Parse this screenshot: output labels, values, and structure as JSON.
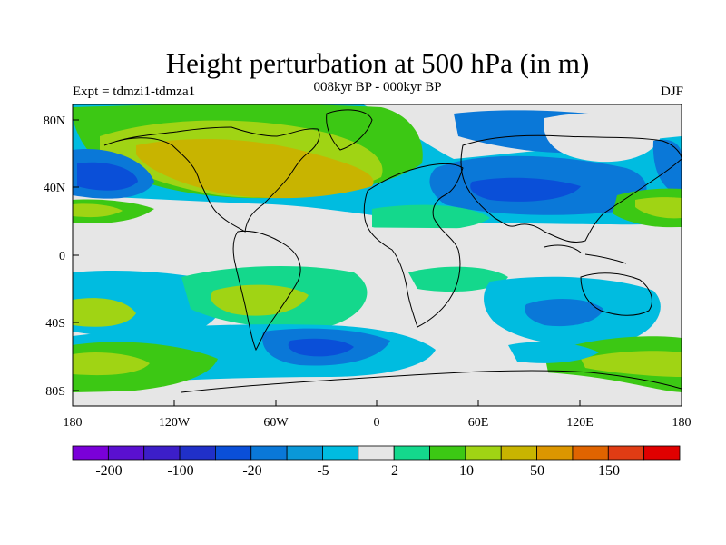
{
  "header": {
    "title": "Height perturbation at 500 hPa (in m)",
    "experiment": "Expt = tdmzi1-tdmza1",
    "period": "008kyr BP - 000kyr BP",
    "season": "DJF"
  },
  "axes": {
    "x_ticks": [
      "180",
      "120W",
      "60W",
      "0",
      "60E",
      "120E",
      "180"
    ],
    "y_ticks": [
      "80N",
      "40N",
      "0",
      "40S",
      "80S"
    ]
  },
  "colorbar": {
    "colors": [
      "#7a00d9",
      "#5a10d0",
      "#3c1ec8",
      "#2030c8",
      "#0a4fd8",
      "#0a78d8",
      "#0a98d8",
      "#00bce0",
      "#e6e6e6",
      "#14d88c",
      "#3cc814",
      "#a0d414",
      "#c8b400",
      "#dc9600",
      "#e06400",
      "#e03c14",
      "#e00000"
    ],
    "labels": [
      "-200",
      "-100",
      "-20",
      "-5",
      "2",
      "10",
      "50",
      "150"
    ]
  },
  "chart_data": {
    "type": "heatmap",
    "title": "Height perturbation at 500 hPa (in m)",
    "subtitle": "008kyr BP - 000kyr BP",
    "season": "DJF",
    "xlim": [
      -180,
      180
    ],
    "ylim": [
      -90,
      90
    ],
    "colorbar_levels": [
      -200,
      -100,
      -20,
      -5,
      2,
      10,
      50,
      150
    ],
    "regions": [
      {
        "name": "",
        "lon": -100,
        "lat": 57,
        "value": 50,
        "color": "#c8b400"
      },
      {
        "name": "",
        "lon": -45,
        "lat": 42,
        "value": 50,
        "color": "#c8b400"
      },
      {
        "name": "",
        "lon": -150,
        "lat": 42,
        "value": -20,
        "color": "#0a4fd8"
      },
      {
        "name": "",
        "lon": 65,
        "lat": 36,
        "value": -20,
        "color": "#0a4fd8"
      },
      {
        "name": "",
        "lon": 170,
        "lat": 50,
        "value": -20,
        "color": "#0a78d8"
      },
      {
        "name": "",
        "lon": -30,
        "lat": -57,
        "value": -20,
        "color": "#0a4fd8"
      },
      {
        "name": "",
        "lon": -70,
        "lat": -40,
        "value": 10,
        "color": "#a0d414"
      },
      {
        "name": "",
        "lon": 120,
        "lat": -70,
        "value": 10,
        "color": "#3cc814"
      },
      {
        "name": "",
        "lon": 160,
        "lat": 25,
        "value": 10,
        "color": "#a0d414"
      }
    ]
  }
}
